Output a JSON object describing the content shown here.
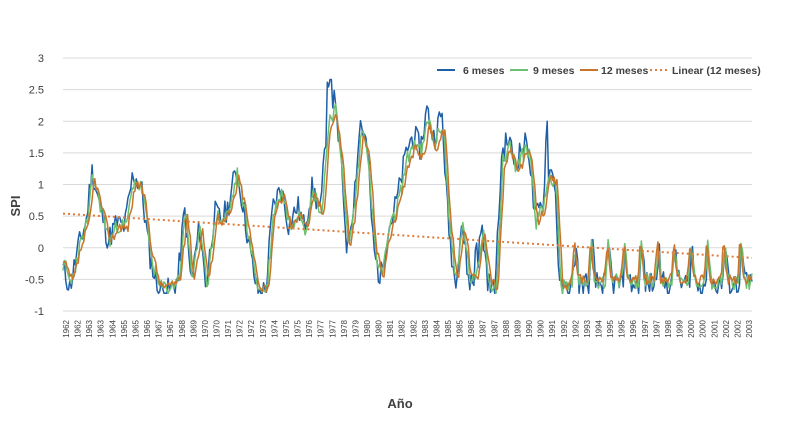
{
  "chart_data": {
    "type": "line",
    "title": "",
    "xlabel": "Año",
    "ylabel": "SPI",
    "ylim": [
      -1,
      3
    ],
    "yticks": [
      -1,
      -0.5,
      0,
      0.5,
      1,
      1.5,
      2,
      2.5,
      3
    ],
    "grid": true,
    "legend_position": "top-right",
    "x_tick_labels": [
      "1962",
      "1962",
      "1963",
      "1963",
      "1964",
      "1965",
      "1965",
      "1966",
      "1967",
      "1967",
      "1968",
      "1969",
      "1970",
      "1970",
      "1971",
      "1972",
      "1972",
      "1973",
      "1974",
      "1975",
      "1975",
      "1976",
      "1977",
      "1977",
      "1978",
      "1979",
      "1980",
      "1980",
      "1981",
      "1982",
      "1982",
      "1983",
      "1984",
      "1985",
      "1985",
      "1986",
      "1987",
      "1987",
      "1988",
      "1989",
      "1990",
      "1990",
      "1991",
      "1992",
      "1992",
      "1993",
      "1994",
      "1995",
      "1995",
      "1996",
      "1997",
      "1997",
      "1998",
      "1999",
      "2000",
      "2000",
      "2001",
      "2002",
      "2002",
      "2003"
    ],
    "x_years": [
      1962,
      2003.5
    ],
    "keys": [
      [
        1962.0,
        -0.25
      ],
      [
        1962.5,
        -0.55
      ],
      [
        1963.0,
        0.0
      ],
      [
        1963.5,
        0.4
      ],
      [
        1963.8,
        1.1
      ],
      [
        1964.3,
        0.6
      ],
      [
        1964.8,
        0.1
      ],
      [
        1965.3,
        0.35
      ],
      [
        1965.8,
        0.3
      ],
      [
        1966.3,
        1.05
      ],
      [
        1966.8,
        0.85
      ],
      [
        1967.3,
        -0.1
      ],
      [
        1967.8,
        -0.6
      ],
      [
        1968.5,
        -0.6
      ],
      [
        1969.0,
        -0.45
      ],
      [
        1969.4,
        0.55
      ],
      [
        1969.8,
        -0.5
      ],
      [
        1970.3,
        0.3
      ],
      [
        1970.7,
        -0.55
      ],
      [
        1971.2,
        0.5
      ],
      [
        1971.6,
        0.4
      ],
      [
        1972.0,
        0.55
      ],
      [
        1972.5,
        1.1
      ],
      [
        1972.9,
        0.65
      ],
      [
        1973.3,
        0.0
      ],
      [
        1973.8,
        -0.65
      ],
      [
        1974.3,
        -0.6
      ],
      [
        1974.7,
        0.55
      ],
      [
        1975.2,
        0.85
      ],
      [
        1975.7,
        0.3
      ],
      [
        1976.2,
        0.6
      ],
      [
        1976.6,
        0.3
      ],
      [
        1977.1,
        0.85
      ],
      [
        1977.6,
        0.5
      ],
      [
        1978.0,
        1.9
      ],
      [
        1978.4,
        2.1
      ],
      [
        1978.8,
        1.3
      ],
      [
        1979.2,
        -0.05
      ],
      [
        1979.6,
        0.7
      ],
      [
        1980.0,
        1.8
      ],
      [
        1980.4,
        1.4
      ],
      [
        1980.8,
        -0.05
      ],
      [
        1981.2,
        -0.45
      ],
      [
        1981.6,
        0.2
      ],
      [
        1982.0,
        0.5
      ],
      [
        1982.4,
        0.9
      ],
      [
        1982.8,
        1.4
      ],
      [
        1983.2,
        1.6
      ],
      [
        1983.6,
        1.4
      ],
      [
        1984.0,
        1.95
      ],
      [
        1984.4,
        1.55
      ],
      [
        1984.9,
        1.9
      ],
      [
        1985.3,
        0.3
      ],
      [
        1985.7,
        -0.5
      ],
      [
        1986.1,
        0.4
      ],
      [
        1986.5,
        -0.45
      ],
      [
        1986.9,
        -0.5
      ],
      [
        1987.3,
        0.3
      ],
      [
        1987.7,
        -0.5
      ],
      [
        1988.1,
        -0.65
      ],
      [
        1988.5,
        1.3
      ],
      [
        1988.9,
        1.55
      ],
      [
        1989.3,
        1.2
      ],
      [
        1989.7,
        1.4
      ],
      [
        1990.1,
        1.5
      ],
      [
        1990.5,
        0.4
      ],
      [
        1990.9,
        0.6
      ],
      [
        1991.3,
        1.1
      ],
      [
        1991.7,
        1.0
      ],
      [
        1992.0,
        -0.6
      ],
      [
        1992.5,
        -0.6
      ],
      [
        2003.5,
        -0.6
      ]
    ],
    "trend": {
      "name": "Linear (12 meses)",
      "start": [
        1962,
        0.54
      ],
      "end": [
        2003.5,
        -0.16
      ]
    },
    "series": [
      {
        "name": "6 meses",
        "color": "#1f5fa6",
        "shift": -0.08,
        "amp": 1.12,
        "noise": 0.2,
        "seed": 11
      },
      {
        "name": "9 meses",
        "color": "#6cc070",
        "shift": 0.0,
        "amp": 1.05,
        "noise": 0.13,
        "seed": 23
      },
      {
        "name": "12 meses",
        "color": "#c8742a",
        "shift": 0.1,
        "amp": 1.0,
        "noise": 0.08,
        "seed": 37
      }
    ],
    "trend_color": "#e07b39"
  }
}
